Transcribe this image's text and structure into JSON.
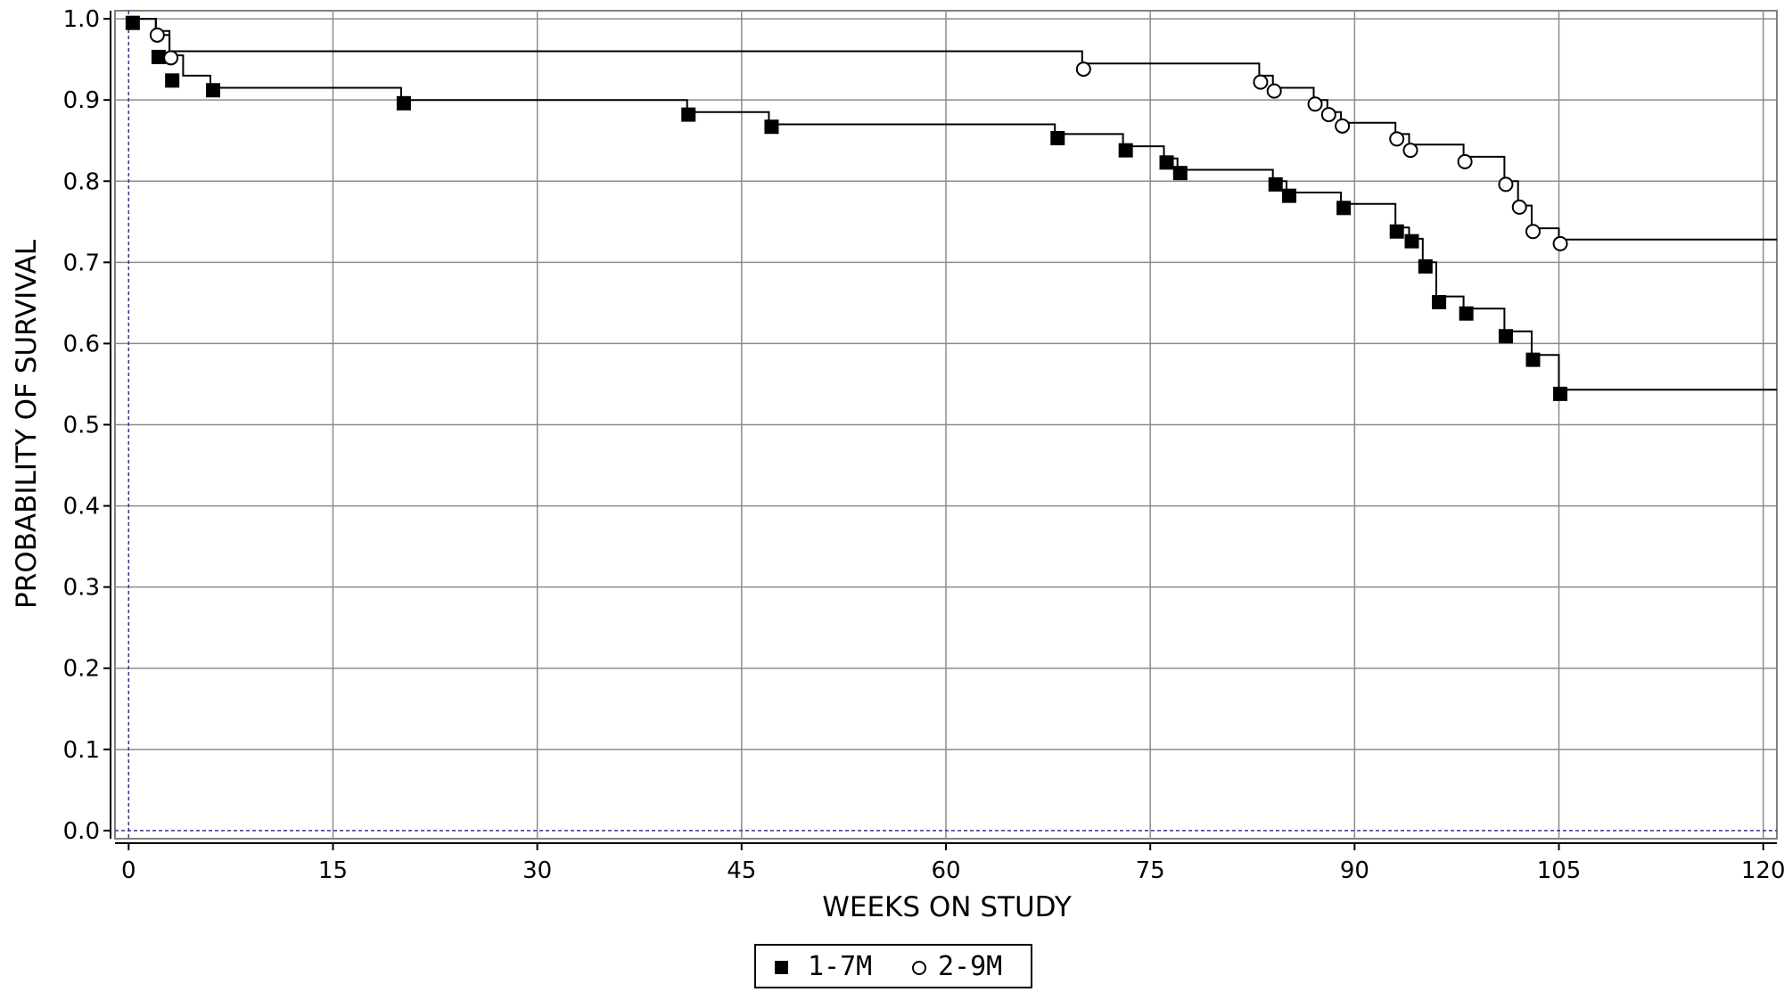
{
  "chart_data": {
    "type": "line",
    "step": true,
    "xlabel": "WEEKS ON STUDY",
    "ylabel": "PROBABILITY OF SURVIVAL",
    "xlim": [
      -1,
      121
    ],
    "ylim": [
      -0.01,
      1.01
    ],
    "xticks": [
      0,
      15,
      30,
      45,
      60,
      75,
      90,
      105,
      120
    ],
    "yticks": [
      0.0,
      0.1,
      0.2,
      0.3,
      0.4,
      0.5,
      0.6,
      0.7,
      0.8,
      0.9,
      1.0
    ],
    "grid": true,
    "legend_position": "bottom-center",
    "series": [
      {
        "name": "1-7M",
        "marker": "filled-square",
        "color": "#000000",
        "step_x": [
          0,
          2,
          3,
          4,
          6,
          20,
          41,
          47,
          68,
          73,
          76,
          77,
          84,
          85,
          89,
          93,
          94,
          95,
          96,
          98,
          101,
          103,
          105,
          121
        ],
        "step_y": [
          1.0,
          0.98,
          0.955,
          0.93,
          0.915,
          0.9,
          0.885,
          0.87,
          0.858,
          0.843,
          0.828,
          0.814,
          0.8,
          0.786,
          0.772,
          0.743,
          0.729,
          0.7,
          0.658,
          0.643,
          0.615,
          0.586,
          0.543,
          0.543
        ],
        "marker_x": [
          0.3,
          2.2,
          3.2,
          6.2,
          20.2,
          41.1,
          47.2,
          68.2,
          73.2,
          76.2,
          77.2,
          84.2,
          85.2,
          89.2,
          93.1,
          94.2,
          95.2,
          96.2,
          98.2,
          101.1,
          103.1,
          105.1
        ],
        "marker_y": [
          0.995,
          0.953,
          0.924,
          0.912,
          0.896,
          0.882,
          0.867,
          0.853,
          0.838,
          0.823,
          0.81,
          0.796,
          0.782,
          0.767,
          0.738,
          0.726,
          0.695,
          0.651,
          0.637,
          0.609,
          0.58,
          0.538
        ]
      },
      {
        "name": "2-9M",
        "marker": "open-circle",
        "color": "#000000",
        "step_x": [
          0,
          2,
          3,
          70,
          83,
          84,
          87,
          88,
          89,
          93,
          94,
          98,
          101,
          102,
          103,
          105,
          121
        ],
        "step_y": [
          1.0,
          0.985,
          0.96,
          0.945,
          0.93,
          0.915,
          0.9,
          0.885,
          0.872,
          0.858,
          0.845,
          0.83,
          0.8,
          0.77,
          0.742,
          0.728,
          0.728
        ],
        "marker_x": [
          2.1,
          3.1,
          70.1,
          83.1,
          84.1,
          87.1,
          88.1,
          89.1,
          93.1,
          94.1,
          98.1,
          101.1,
          102.1,
          103.1,
          105.1
        ],
        "marker_y": [
          0.98,
          0.952,
          0.938,
          0.922,
          0.911,
          0.895,
          0.882,
          0.868,
          0.852,
          0.838,
          0.824,
          0.796,
          0.768,
          0.738,
          0.723
        ]
      }
    ]
  }
}
